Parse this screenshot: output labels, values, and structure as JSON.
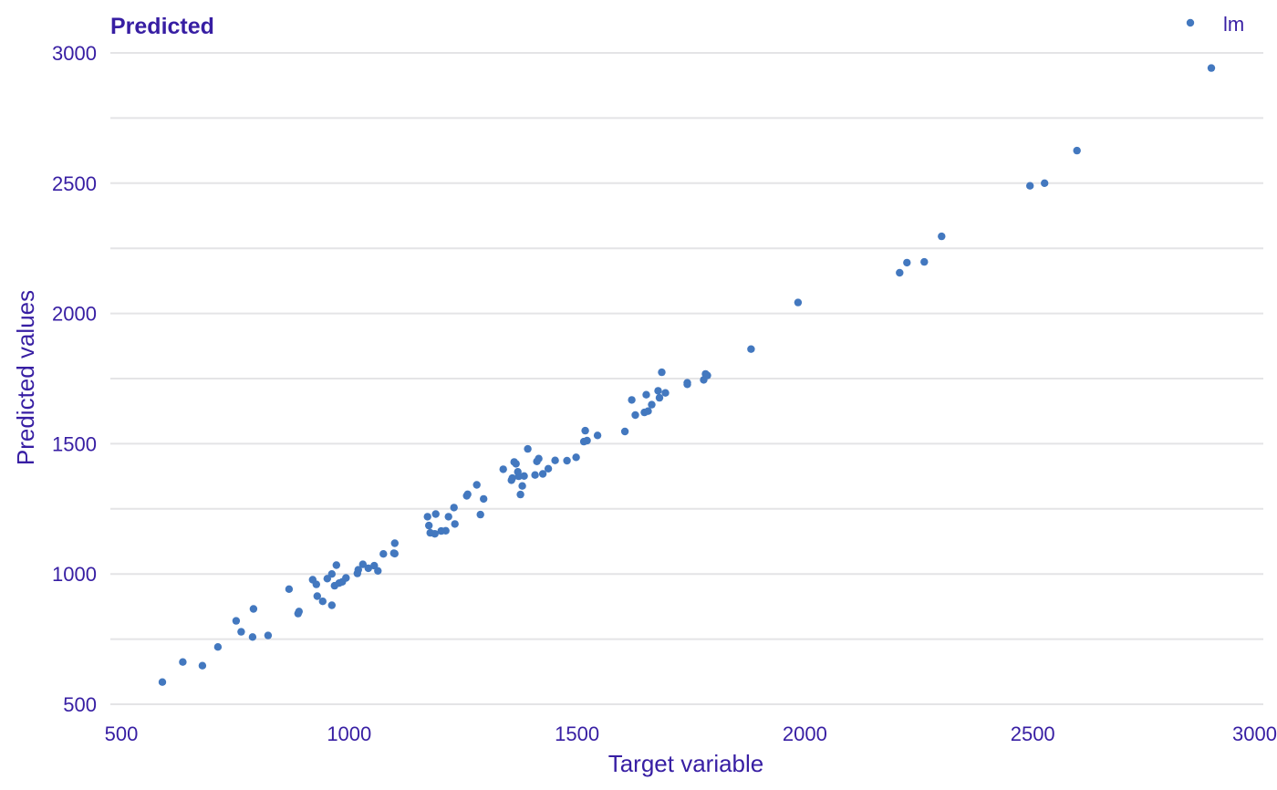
{
  "chart_data": {
    "type": "scatter",
    "title": "Predicted",
    "xlabel": "Target variable",
    "ylabel": "Predicted values",
    "xlim": [
      500,
      3000
    ],
    "ylim": [
      500,
      3000
    ],
    "xticks": [
      "500",
      "1000",
      "1500",
      "2000",
      "2500",
      "3000"
    ],
    "yticks": [
      "500",
      "1000",
      "1500",
      "2000",
      "2500",
      "3000"
    ],
    "grid": "horizontal",
    "legend_position": "top-right",
    "colors": {
      "point": "#4378bf",
      "text": "#371ea3",
      "grid": "#e4e4e6"
    },
    "series": [
      {
        "name": "lm",
        "color": "#4378bf",
        "points": [
          [
            590,
            585
          ],
          [
            635,
            662
          ],
          [
            678,
            648
          ],
          [
            712,
            720
          ],
          [
            752,
            820
          ],
          [
            763,
            778
          ],
          [
            788,
            758
          ],
          [
            790,
            866
          ],
          [
            822,
            764
          ],
          [
            868,
            942
          ],
          [
            888,
            848
          ],
          [
            890,
            856
          ],
          [
            920,
            978
          ],
          [
            928,
            960
          ],
          [
            930,
            915
          ],
          [
            942,
            895
          ],
          [
            952,
            982
          ],
          [
            962,
            880
          ],
          [
            962,
            1000
          ],
          [
            968,
            955
          ],
          [
            972,
            1034
          ],
          [
            978,
            965
          ],
          [
            985,
            970
          ],
          [
            993,
            985
          ],
          [
            1018,
            1002
          ],
          [
            1020,
            1016
          ],
          [
            1030,
            1037
          ],
          [
            1042,
            1022
          ],
          [
            1055,
            1032
          ],
          [
            1063,
            1012
          ],
          [
            1075,
            1077
          ],
          [
            1098,
            1080
          ],
          [
            1100,
            1078
          ],
          [
            1100,
            1118
          ],
          [
            1172,
            1220
          ],
          [
            1175,
            1186
          ],
          [
            1178,
            1158
          ],
          [
            1188,
            1154
          ],
          [
            1190,
            1230
          ],
          [
            1202,
            1165
          ],
          [
            1212,
            1166
          ],
          [
            1218,
            1220
          ],
          [
            1230,
            1255
          ],
          [
            1232,
            1192
          ],
          [
            1258,
            1300
          ],
          [
            1260,
            1306
          ],
          [
            1280,
            1342
          ],
          [
            1288,
            1228
          ],
          [
            1295,
            1288
          ],
          [
            1338,
            1402
          ],
          [
            1356,
            1360
          ],
          [
            1358,
            1368
          ],
          [
            1362,
            1430
          ],
          [
            1366,
            1423
          ],
          [
            1370,
            1392
          ],
          [
            1372,
            1375
          ],
          [
            1376,
            1305
          ],
          [
            1380,
            1338
          ],
          [
            1384,
            1376
          ],
          [
            1392,
            1480
          ],
          [
            1408,
            1380
          ],
          [
            1412,
            1432
          ],
          [
            1416,
            1443
          ],
          [
            1425,
            1384
          ],
          [
            1437,
            1404
          ],
          [
            1452,
            1436
          ],
          [
            1478,
            1435
          ],
          [
            1498,
            1448
          ],
          [
            1515,
            1508
          ],
          [
            1518,
            1550
          ],
          [
            1522,
            1512
          ],
          [
            1545,
            1532
          ],
          [
            1605,
            1547
          ],
          [
            1620,
            1668
          ],
          [
            1628,
            1610
          ],
          [
            1648,
            1620
          ],
          [
            1652,
            1688
          ],
          [
            1656,
            1625
          ],
          [
            1664,
            1650
          ],
          [
            1678,
            1703
          ],
          [
            1681,
            1676
          ],
          [
            1686,
            1774
          ],
          [
            1694,
            1695
          ],
          [
            1742,
            1734
          ],
          [
            1742,
            1728
          ],
          [
            1778,
            1745
          ],
          [
            1782,
            1768
          ],
          [
            1786,
            1762
          ],
          [
            1882,
            1863
          ],
          [
            1985,
            2042
          ],
          [
            2208,
            2156
          ],
          [
            2224,
            2195
          ],
          [
            2262,
            2198
          ],
          [
            2300,
            2296
          ],
          [
            2494,
            2490
          ],
          [
            2526,
            2500
          ],
          [
            2597,
            2625
          ],
          [
            2892,
            2942
          ]
        ]
      }
    ]
  }
}
